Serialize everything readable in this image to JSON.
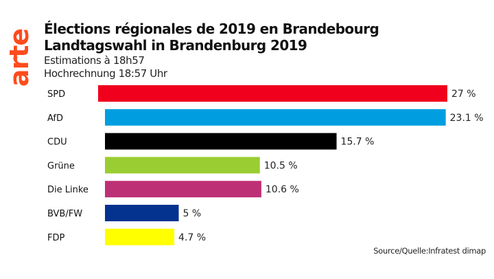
{
  "logo": {
    "text": "arte",
    "color": "#fd4c1d"
  },
  "header": {
    "title_fr": "Élections régionales de 2019 en Brandebourg",
    "title_de": "Landtagswahl in Brandenburg 2019",
    "subtitle_fr": "Estimations à 18h57",
    "subtitle_de": "Hochrechnung 18:57 Uhr"
  },
  "source": "Source/Quelle:Infratest dimap",
  "chart_data": {
    "type": "bar",
    "orientation": "horizontal",
    "title": "Élections régionales de 2019 en Brandebourg / Landtagswahl in Brandenburg 2019",
    "subtitle": "Estimations à 18h57 / Hochrechnung 18:57 Uhr",
    "xlabel": "",
    "ylabel": "",
    "grid": false,
    "legend": "none",
    "categories": [
      "SPD",
      "AfD",
      "CDU",
      "Grüne",
      "Die Linke",
      "BVB/FW",
      "FDP"
    ],
    "values": [
      27,
      23.1,
      15.7,
      10.5,
      10.6,
      5,
      4.7
    ],
    "labels": [
      "27 %",
      "23.1 %",
      "15.7 %",
      "10.5 %",
      "10.6 %",
      "5 %",
      "4.7 %"
    ],
    "colors": [
      "#f0001c",
      "#009ee0",
      "#000000",
      "#9acd32",
      "#be3075",
      "#04328f",
      "#ffff00"
    ],
    "unit": "%"
  }
}
